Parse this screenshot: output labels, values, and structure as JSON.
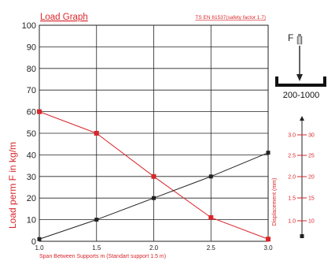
{
  "chart_data": {
    "type": "line",
    "title": "Load Graph",
    "subtitle": "TS EN 61537(safety factor 1.7)",
    "xlabel": "Span Between Supports m (Standart support 1.5 m)",
    "ylabel": "Load perm F in kg/m",
    "y2label": "Displacement (mm)",
    "x_ticks": [
      "1.0",
      "1.5",
      "2.0",
      "2.5",
      "3.0"
    ],
    "y_ticks": [
      "0",
      "10",
      "20",
      "30",
      "40",
      "50",
      "60",
      "70",
      "80",
      "90",
      "100"
    ],
    "xlim": [
      1.0,
      3.0
    ],
    "ylim": [
      0,
      100
    ],
    "grid": true,
    "series": [
      {
        "axis": "load",
        "color": "#d9262b",
        "x": [
          1.0,
          1.5,
          2.0,
          2.5,
          3.0
        ],
        "values": [
          60,
          50,
          30,
          11,
          1
        ]
      },
      {
        "axis": "displacement",
        "color": "#222222",
        "x": [
          1.0,
          1.5,
          2.0,
          2.5,
          3.0
        ],
        "values": [
          1,
          10,
          20,
          30,
          41
        ]
      }
    ],
    "displacement_scale": {
      "labels": [
        "3.0",
        "2.5",
        "2.0",
        "1.5",
        "1.0"
      ],
      "values": [
        "30",
        "25",
        "20",
        "15",
        "10"
      ]
    }
  },
  "diagram": {
    "force_label": "F",
    "range_label": "200-1000"
  },
  "colors": {
    "accent": "#d9262b",
    "line": "#222222"
  }
}
